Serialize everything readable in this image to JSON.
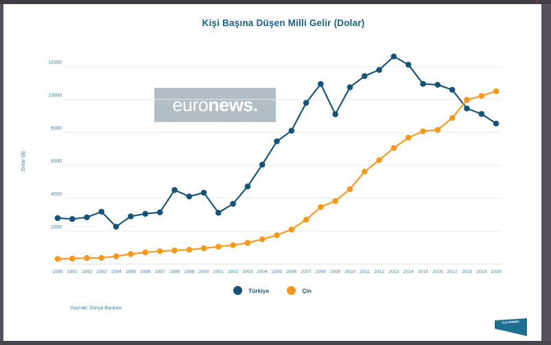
{
  "frame": {
    "close_glyph": "✕"
  },
  "title": "Kişi Başına Düşen Milli Gelir (Dolar)",
  "watermark": {
    "euro": "euro",
    "news": "news."
  },
  "footer": {
    "source": "Kaynak: Dünya Bankası"
  },
  "logo": {
    "euro": "euro",
    "news": "news."
  },
  "colors": {
    "turkiye": "#175379",
    "cin": "#f6991e",
    "title_text": "#15617f",
    "tick_text": "#4186ab",
    "legend_text": "#1a5276",
    "grid": "#e6e9eb",
    "baseline": "#dcdfe2",
    "watermark_bg": "#b3bdc6",
    "frame": "#56515a",
    "logo_bg": "#1d6e91"
  },
  "legend": [
    {
      "label": "Türkiye",
      "color": "#175379"
    },
    {
      "label": "Çin",
      "color": "#f6991e"
    }
  ],
  "chart_data": {
    "type": "line",
    "title": "Kişi Başına Düşen Milli Gelir (Dolar)",
    "xlabel": "",
    "ylabel": "Dolar ($)",
    "x": [
      1990,
      1991,
      1992,
      1993,
      1994,
      1995,
      1996,
      1997,
      1998,
      1999,
      2000,
      2001,
      2002,
      2003,
      2004,
      2005,
      2006,
      2007,
      2008,
      2009,
      2010,
      2011,
      2012,
      2013,
      2014,
      2015,
      2016,
      2017,
      2018,
      2019,
      2020
    ],
    "series": [
      {
        "name": "Türkiye",
        "color": "#175379",
        "values": [
          2794,
          2736,
          2842,
          3180,
          2270,
          2898,
          3053,
          3144,
          4496,
          4108,
          4337,
          3119,
          3659,
          4718,
          6040,
          7456,
          8102,
          9791,
          10941,
          9103,
          10742,
          11420,
          11795,
          12614,
          12112,
          10948,
          10891,
          10589,
          9453,
          9122,
          8536
        ]
      },
      {
        "name": "Çin",
        "color": "#f6991e",
        "values": [
          318,
          333,
          366,
          377,
          473,
          610,
          709,
          781,
          829,
          873,
          959,
          1053,
          1149,
          1289,
          1509,
          1753,
          2099,
          2694,
          3468,
          3832,
          4550,
          5618,
          6317,
          7051,
          7679,
          8067,
          8148,
          8879,
          9977,
          10217,
          10500
        ]
      }
    ],
    "ylim": [
      0,
      12700
    ],
    "yticks": [
      0,
      2000,
      4000,
      6000,
      8000,
      10000,
      12000
    ],
    "grid": true,
    "legend_position": "bottom",
    "source": "Kaynak: Dünya Bankası"
  }
}
